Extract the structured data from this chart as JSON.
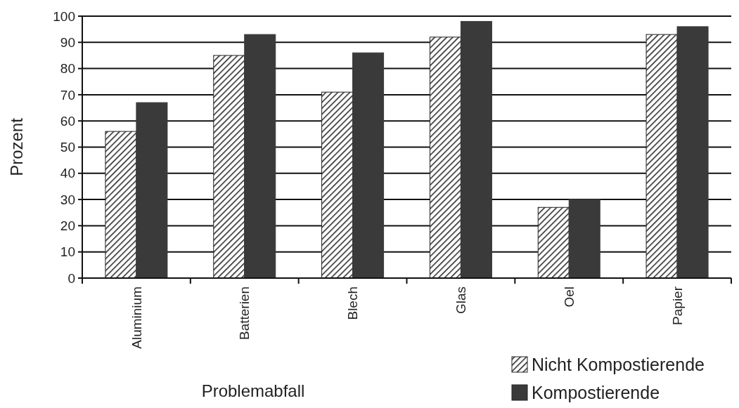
{
  "chart_data": {
    "type": "bar",
    "xlabel": "Problemabfall",
    "ylabel": "Prozent",
    "categories": [
      "Aluminium",
      "Batterien",
      "Blech",
      "Glas",
      "Oel",
      "Papier"
    ],
    "series": [
      {
        "name": "Nicht Kompostierende",
        "color": "#222222",
        "values": [
          56,
          85,
          71,
          92,
          27,
          93
        ]
      },
      {
        "name": "Kompostierende",
        "color": "#3a3a3a",
        "values": [
          67,
          93,
          86,
          98,
          30,
          96
        ]
      }
    ],
    "ylim": [
      0,
      100
    ],
    "yticks": [
      0,
      10,
      20,
      30,
      40,
      50,
      60,
      70,
      80,
      90,
      100
    ],
    "grid": "y",
    "legend": "bottom right"
  }
}
